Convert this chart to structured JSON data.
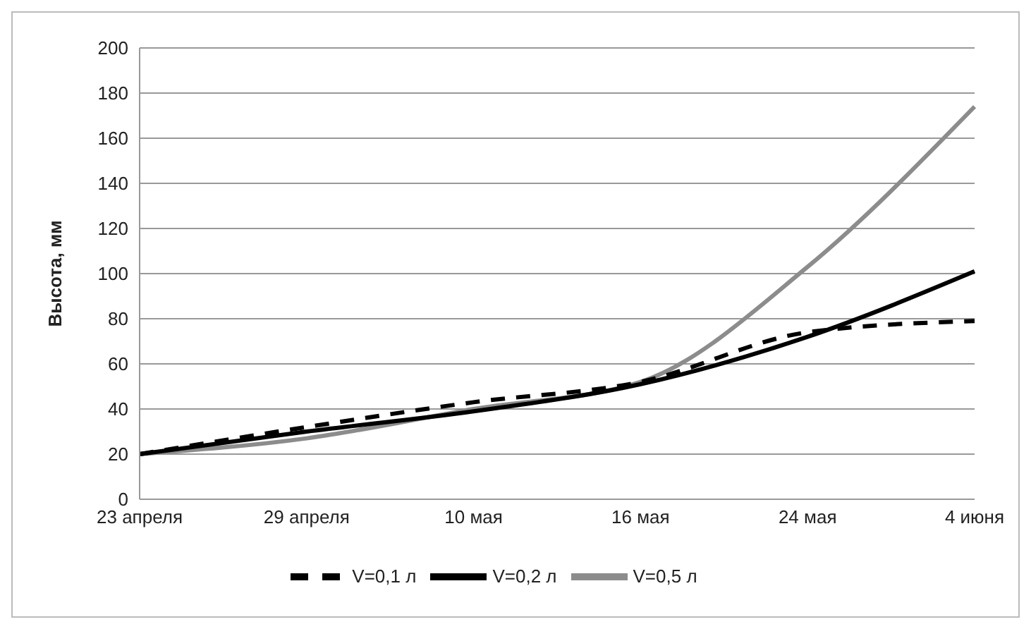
{
  "chart_data": {
    "type": "line",
    "ylabel": "Высота, мм",
    "categories": [
      "23 апреля",
      "29 апреля",
      "10 мая",
      "16 мая",
      "24 мая",
      "4 июня"
    ],
    "series": [
      {
        "name": "V=0,5 л",
        "color": "#8c8c8c",
        "values": [
          20,
          27,
          40,
          52,
          103,
          174
        ],
        "line_style": "solid"
      },
      {
        "name": "V=0,2 л",
        "color": "#000000",
        "values": [
          20,
          30,
          39,
          51,
          72,
          101
        ],
        "line_style": "solid"
      },
      {
        "name": "V=0,1 л",
        "color": "#000000",
        "values": [
          20,
          32,
          43,
          52,
          74,
          79
        ],
        "line_style": "dashed"
      }
    ],
    "ylim": [
      0,
      200
    ],
    "yticks": [
      0,
      20,
      40,
      60,
      80,
      100,
      120,
      140,
      160,
      180,
      200
    ],
    "grid": "y",
    "legend": "bottom",
    "marker": "none"
  }
}
